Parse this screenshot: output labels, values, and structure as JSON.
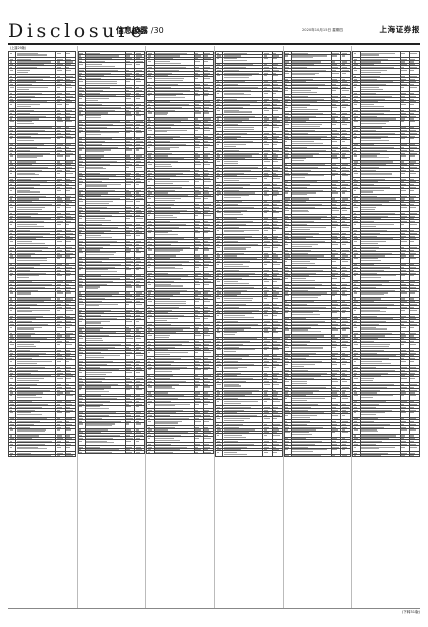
{
  "masthead": {
    "brand": "Disclosure",
    "section_title": "信息披露",
    "page_number": "/30",
    "dateline": "2020年10月15日 星期四",
    "paper_name": "上海证券报"
  },
  "columns": [
    {
      "heading": "(上接29版)",
      "rows": 118
    },
    {
      "heading": "",
      "rows": 118
    },
    {
      "heading": "",
      "rows": 118
    },
    {
      "heading": "",
      "rows": 118
    },
    {
      "heading": "",
      "rows": 118
    },
    {
      "heading": "",
      "rows": 118
    }
  ],
  "footer": {
    "continuation": "(下转31版)"
  }
}
